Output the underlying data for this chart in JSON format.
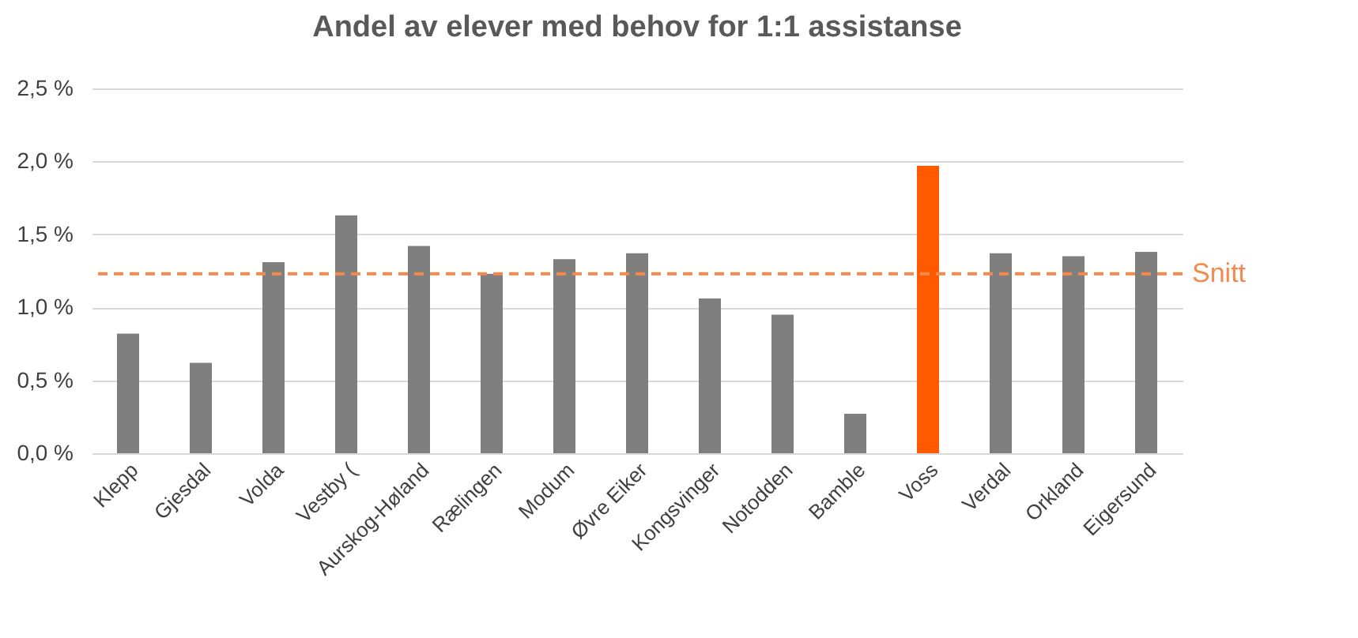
{
  "chart_data": {
    "type": "bar",
    "title": "Andel av elever med behov for 1:1 assistanse",
    "categories": [
      "Klepp",
      "Gjesdal",
      "Volda",
      "Vestby (",
      "Aurskog-Høland",
      "Rælingen",
      "Modum",
      "Øvre Eiker",
      "Kongsvinger",
      "Notodden",
      "Bamble",
      "Voss",
      "Verdal",
      "Orkland",
      "Eigersund"
    ],
    "values": [
      0.82,
      0.62,
      1.31,
      1.63,
      1.42,
      1.23,
      1.33,
      1.37,
      1.06,
      0.95,
      0.27,
      1.97,
      1.37,
      1.35,
      1.38
    ],
    "colors": [
      "#7f7f7f",
      "#7f7f7f",
      "#7f7f7f",
      "#7f7f7f",
      "#7f7f7f",
      "#7f7f7f",
      "#7f7f7f",
      "#7f7f7f",
      "#7f7f7f",
      "#7f7f7f",
      "#7f7f7f",
      "#ff5a00",
      "#7f7f7f",
      "#7f7f7f",
      "#7f7f7f"
    ],
    "ylim": [
      0,
      2.5
    ],
    "yticks": [
      {
        "value": 0,
        "label": "0,0 %"
      },
      {
        "value": 0.5,
        "label": "0,5 %"
      },
      {
        "value": 1,
        "label": "1,0 %"
      },
      {
        "value": 1.5,
        "label": "1,5 %"
      },
      {
        "value": 2,
        "label": "2,0 %"
      },
      {
        "value": 2.5,
        "label": "2,5 %"
      }
    ],
    "grid": "y",
    "ref_lines": [
      {
        "axis": "y",
        "value": 1.23,
        "label": "Snitt",
        "color": "#f4894b",
        "line_style": "dashed"
      }
    ]
  }
}
